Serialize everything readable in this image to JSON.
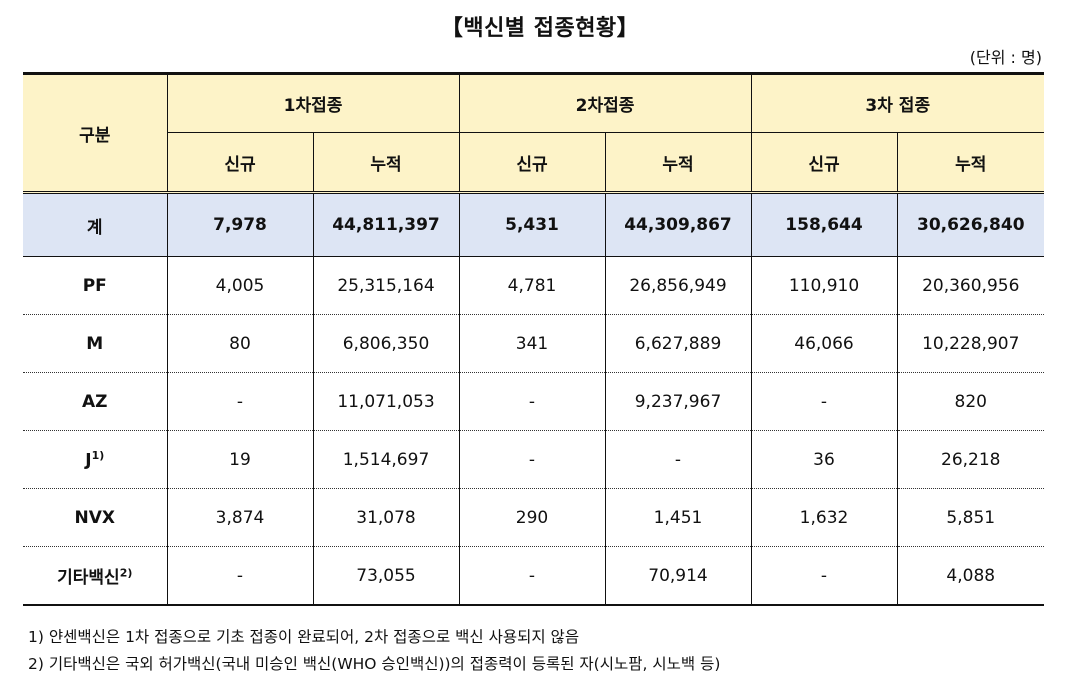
{
  "title": "【백신별 접종현황】",
  "unit": "(단위 : 명)",
  "header": {
    "category": "구분",
    "groups": [
      "1차접종",
      "2차접종",
      "3차 접종"
    ],
    "sub": [
      "신규",
      "누적"
    ]
  },
  "total": {
    "label": "계",
    "values": [
      "7,978",
      "44,811,397",
      "5,431",
      "44,309,867",
      "158,644",
      "30,626,840"
    ]
  },
  "rows": [
    {
      "label": "PF",
      "sup": "",
      "values": [
        "4,005",
        "25,315,164",
        "4,781",
        "26,856,949",
        "110,910",
        "20,360,956"
      ]
    },
    {
      "label": "M",
      "sup": "",
      "values": [
        "80",
        "6,806,350",
        "341",
        "6,627,889",
        "46,066",
        "10,228,907"
      ]
    },
    {
      "label": "AZ",
      "sup": "",
      "values": [
        "-",
        "11,071,053",
        "-",
        "9,237,967",
        "-",
        "820"
      ]
    },
    {
      "label": "J",
      "sup": "1)",
      "values": [
        "19",
        "1,514,697",
        "-",
        "-",
        "36",
        "26,218"
      ]
    },
    {
      "label": "NVX",
      "sup": "",
      "values": [
        "3,874",
        "31,078",
        "290",
        "1,451",
        "1,632",
        "5,851"
      ]
    },
    {
      "label": "기타백신",
      "sup": "2)",
      "values": [
        "-",
        "73,055",
        "-",
        "70,914",
        "-",
        "4,088"
      ]
    }
  ],
  "notes": [
    "1) 얀센백신은 1차 접종으로 기초 접종이 완료되어, 2차 접종으로 백신 사용되지 않음",
    "2) 기타백신은 국외 허가백신(국내 미승인 백신(WHO 승인백신))의 접종력이 등록된 자(시노팜, 시노백 등)"
  ]
}
